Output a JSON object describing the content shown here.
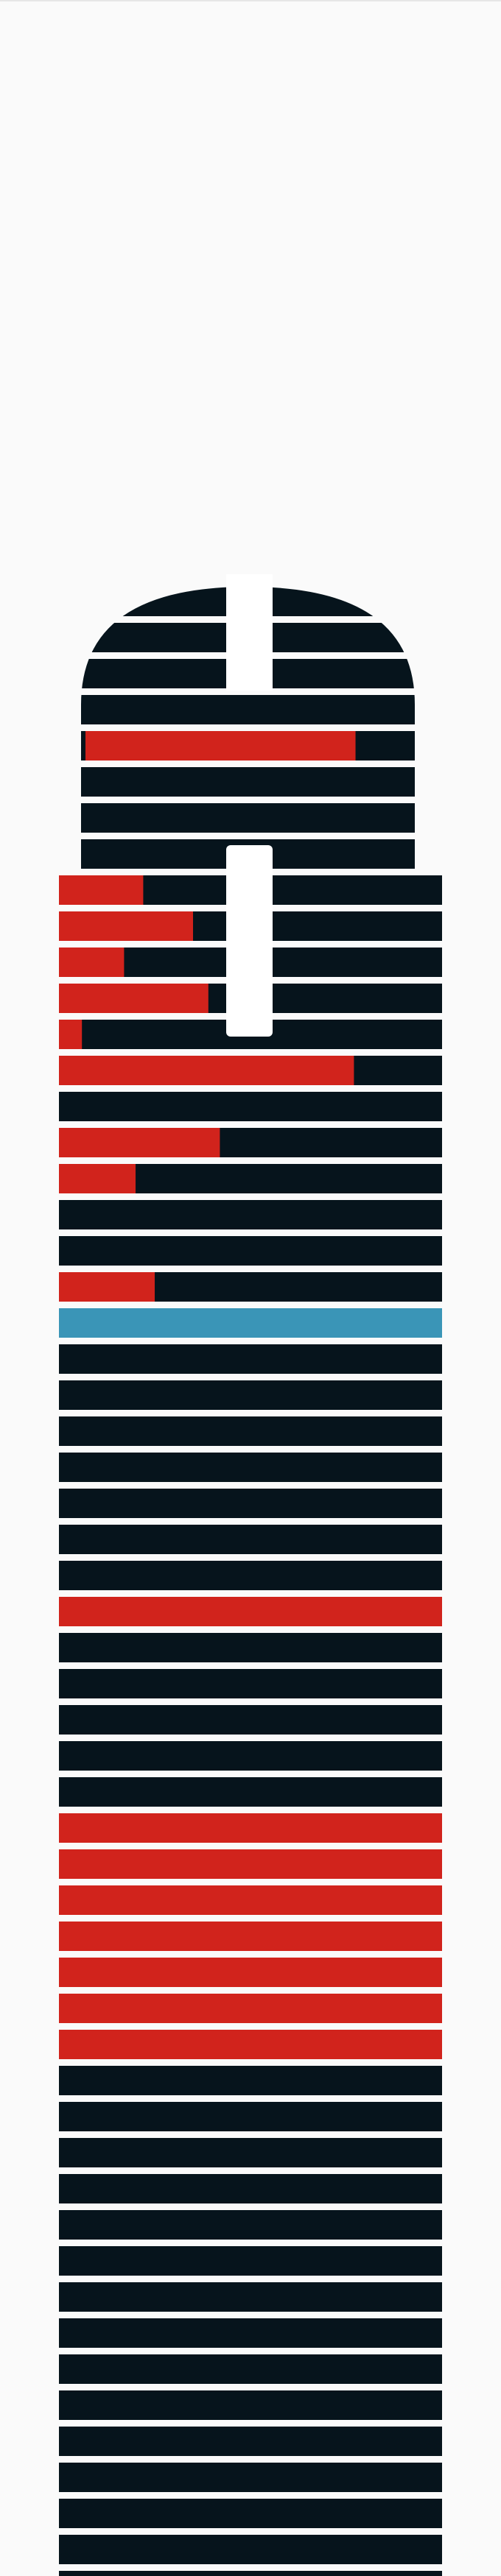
{
  "colors": {
    "background": "#fafafa",
    "bar": "#06141c",
    "fill": "#d1231c",
    "highlight": "#3a95b7",
    "notch": "#ffffff"
  },
  "chart_data": {
    "type": "bar",
    "orientation": "horizontal",
    "title": "",
    "xlabel": "",
    "ylabel": "",
    "xlim": [
      0,
      1
    ],
    "values": [
      0,
      0,
      0,
      0,
      0.82,
      0,
      0,
      0,
      0.22,
      0.35,
      0.17,
      0.39,
      0.06,
      0.77,
      0,
      0.42,
      0.2,
      0,
      0,
      0.25,
      0,
      0,
      0,
      0,
      0,
      0,
      0,
      0,
      1,
      0,
      0,
      0,
      0,
      0,
      1,
      1,
      1,
      1,
      1,
      1,
      1,
      0,
      0,
      0,
      0,
      0,
      0,
      0,
      0,
      0,
      0,
      0,
      0,
      0,
      0,
      0,
      0
    ],
    "highlight_index": 20
  }
}
